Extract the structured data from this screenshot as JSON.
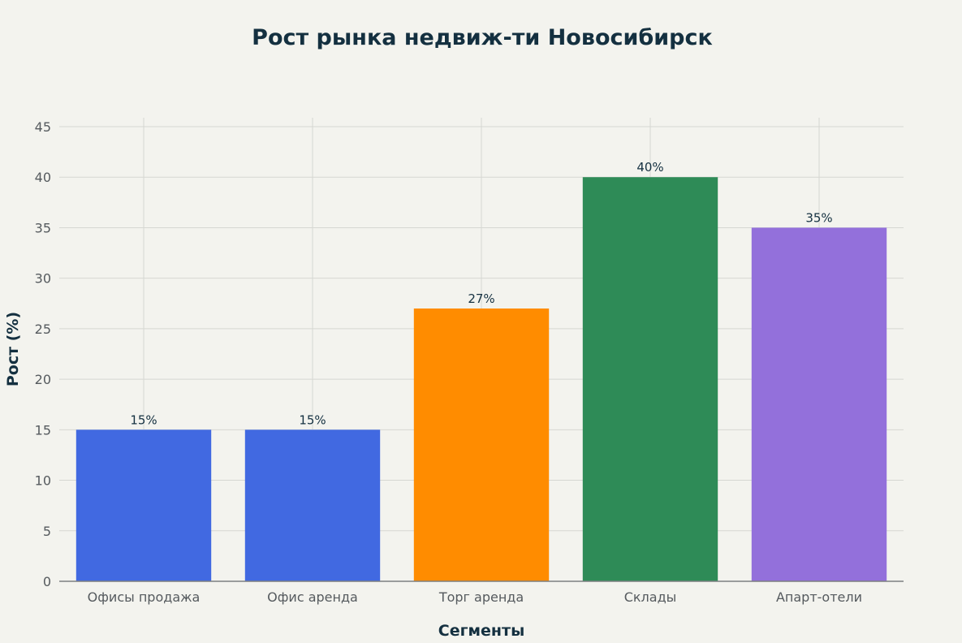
{
  "chart_data": {
    "type": "bar",
    "title": "Рост рынка недвиж-ти Новосибирск",
    "xlabel": "Сегменты",
    "ylabel": "Рост (%)",
    "ylim": [
      0,
      45
    ],
    "yticks": [
      0,
      5,
      10,
      15,
      20,
      25,
      30,
      35,
      40,
      45
    ],
    "categories": [
      "Офисы продажа",
      "Офис аренда",
      "Торг аренда",
      "Склады",
      "Апарт-отели"
    ],
    "values": [
      15,
      15,
      27,
      40,
      35
    ],
    "data_labels": [
      "15%",
      "15%",
      "27%",
      "40%",
      "35%"
    ],
    "colors": [
      "#4169e1",
      "#4169e1",
      "#ff8c00",
      "#2e8b57",
      "#9370db"
    ],
    "grid": true,
    "legend": "none"
  }
}
